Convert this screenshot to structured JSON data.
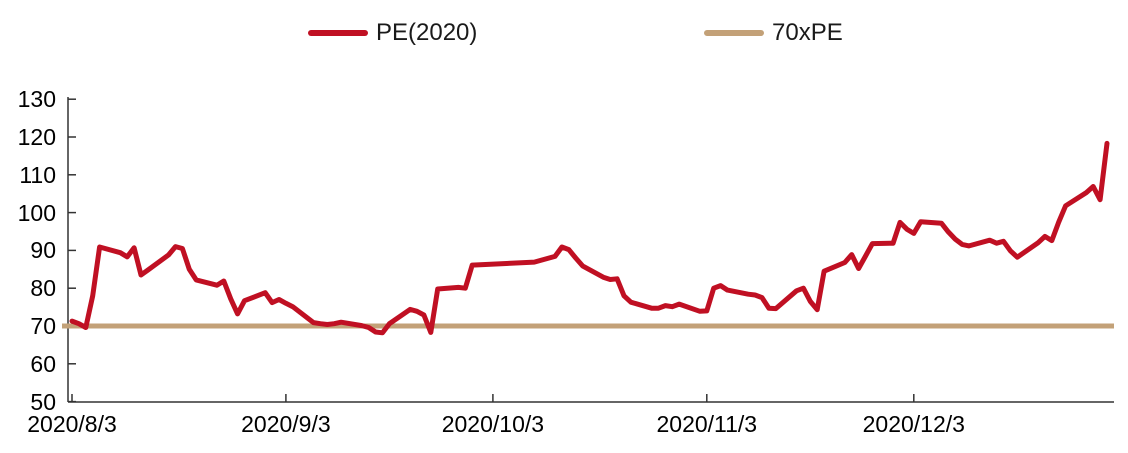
{
  "legend": {
    "items": [
      {
        "label": "PE(2020)",
        "color": "#c01023"
      },
      {
        "label": "70xPE",
        "color": "#c3a178"
      }
    ]
  },
  "colors": {
    "pe_line": "#c01023",
    "baseline": "#c3a178",
    "axis": "#333333",
    "text": "#000000"
  },
  "chart_data": {
    "type": "line",
    "title": "",
    "xlabel": "",
    "ylabel": "",
    "grid": false,
    "legend_position": "top",
    "x_axis": {
      "type": "time",
      "start": "2020/8/3",
      "end": "2020/12/31",
      "tick_labels": [
        "2020/8/3",
        "2020/9/3",
        "2020/10/3",
        "2020/11/3",
        "2020/12/3"
      ]
    },
    "y_axis": {
      "min": 50,
      "max": 130,
      "tick_step": 10,
      "tick_labels": [
        130,
        120,
        110,
        100,
        90,
        80,
        70,
        60,
        50
      ]
    },
    "series": [
      {
        "name": "PE(2020)",
        "color": "#c01023",
        "points": [
          [
            "2020/8/3",
            71.3
          ],
          [
            "2020/8/4",
            70.6
          ],
          [
            "2020/8/5",
            69.6
          ],
          [
            "2020/8/6",
            78.0
          ],
          [
            "2020/8/7",
            90.9
          ],
          [
            "2020/8/10",
            89.4
          ],
          [
            "2020/8/11",
            88.3
          ],
          [
            "2020/8/12",
            90.7
          ],
          [
            "2020/8/13",
            83.5
          ],
          [
            "2020/8/14",
            84.8
          ],
          [
            "2020/8/17",
            88.8
          ],
          [
            "2020/8/18",
            91.0
          ],
          [
            "2020/8/19",
            90.5
          ],
          [
            "2020/8/20",
            85.0
          ],
          [
            "2020/8/21",
            82.2
          ],
          [
            "2020/8/24",
            80.8
          ],
          [
            "2020/8/25",
            81.9
          ],
          [
            "2020/8/26",
            77.2
          ],
          [
            "2020/8/27",
            73.2
          ],
          [
            "2020/8/28",
            76.7
          ],
          [
            "2020/8/31",
            78.8
          ],
          [
            "2020/9/1",
            76.2
          ],
          [
            "2020/9/2",
            77.0
          ],
          [
            "2020/9/3",
            76.0
          ],
          [
            "2020/9/4",
            75.1
          ],
          [
            "2020/9/7",
            70.9
          ],
          [
            "2020/9/8",
            70.6
          ],
          [
            "2020/9/9",
            70.4
          ],
          [
            "2020/9/10",
            70.6
          ],
          [
            "2020/9/11",
            71.0
          ],
          [
            "2020/9/14",
            70.1
          ],
          [
            "2020/9/15",
            69.6
          ],
          [
            "2020/9/16",
            68.4
          ],
          [
            "2020/9/17",
            68.2
          ],
          [
            "2020/9/18",
            70.6
          ],
          [
            "2020/9/21",
            74.4
          ],
          [
            "2020/9/22",
            73.9
          ],
          [
            "2020/9/23",
            72.9
          ],
          [
            "2020/9/24",
            68.3
          ],
          [
            "2020/9/25",
            79.8
          ],
          [
            "2020/9/28",
            80.2
          ],
          [
            "2020/9/29",
            80.0
          ],
          [
            "2020/9/30",
            86.1
          ],
          [
            "2020/10/9",
            86.9
          ],
          [
            "2020/10/12",
            88.4
          ],
          [
            "2020/10/13",
            90.9
          ],
          [
            "2020/10/14",
            90.2
          ],
          [
            "2020/10/15",
            88.0
          ],
          [
            "2020/10/16",
            85.9
          ],
          [
            "2020/10/19",
            82.9
          ],
          [
            "2020/10/20",
            82.3
          ],
          [
            "2020/10/21",
            82.5
          ],
          [
            "2020/10/22",
            78.0
          ],
          [
            "2020/10/23",
            76.3
          ],
          [
            "2020/10/26",
            74.7
          ],
          [
            "2020/10/27",
            74.7
          ],
          [
            "2020/10/28",
            75.4
          ],
          [
            "2020/10/29",
            75.1
          ],
          [
            "2020/10/30",
            75.8
          ],
          [
            "2020/11/2",
            73.9
          ],
          [
            "2020/11/3",
            74.0
          ],
          [
            "2020/11/4",
            80.0
          ],
          [
            "2020/11/5",
            80.7
          ],
          [
            "2020/11/6",
            79.5
          ],
          [
            "2020/11/9",
            78.4
          ],
          [
            "2020/11/10",
            78.2
          ],
          [
            "2020/11/11",
            77.5
          ],
          [
            "2020/11/12",
            74.7
          ],
          [
            "2020/11/13",
            74.6
          ],
          [
            "2020/11/16",
            79.3
          ],
          [
            "2020/11/17",
            80.0
          ],
          [
            "2020/11/18",
            76.5
          ],
          [
            "2020/11/19",
            74.3
          ],
          [
            "2020/11/20",
            84.5
          ],
          [
            "2020/11/23",
            86.8
          ],
          [
            "2020/11/24",
            88.9
          ],
          [
            "2020/11/25",
            85.2
          ],
          [
            "2020/11/26",
            88.5
          ],
          [
            "2020/11/27",
            91.8
          ],
          [
            "2020/11/30",
            91.9
          ],
          [
            "2020/12/1",
            97.4
          ],
          [
            "2020/12/2",
            95.6
          ],
          [
            "2020/12/3",
            94.5
          ],
          [
            "2020/12/4",
            97.6
          ],
          [
            "2020/12/7",
            97.2
          ],
          [
            "2020/12/8",
            94.9
          ],
          [
            "2020/12/9",
            93.0
          ],
          [
            "2020/12/10",
            91.6
          ],
          [
            "2020/12/11",
            91.2
          ],
          [
            "2020/12/14",
            92.7
          ],
          [
            "2020/12/15",
            91.9
          ],
          [
            "2020/12/16",
            92.4
          ],
          [
            "2020/12/17",
            89.9
          ],
          [
            "2020/12/18",
            88.2
          ],
          [
            "2020/12/21",
            92.0
          ],
          [
            "2020/12/22",
            93.7
          ],
          [
            "2020/12/23",
            92.6
          ],
          [
            "2020/12/24",
            97.5
          ],
          [
            "2020/12/25",
            101.8
          ],
          [
            "2020/12/28",
            105.3
          ],
          [
            "2020/12/29",
            106.9
          ],
          [
            "2020/12/30",
            103.4
          ],
          [
            "2020/12/31",
            118.3
          ]
        ]
      },
      {
        "name": "70xPE",
        "color": "#c3a178",
        "points": [
          [
            "2020/8/3",
            70
          ],
          [
            "2020/12/31",
            70
          ]
        ]
      }
    ]
  }
}
